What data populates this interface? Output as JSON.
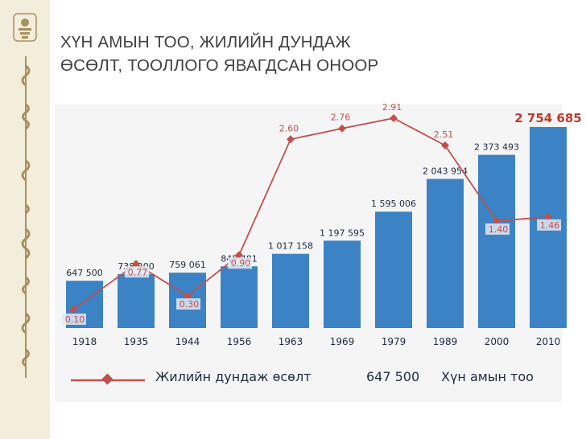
{
  "title_lines": [
    "ХҮН АМЫН ТОО, ЖИЛИЙН ДУНДАЖ",
    "ӨСӨЛТ, ТООЛЛОГО ЯВАГДСАН ОНООР"
  ],
  "colors": {
    "bar": "#3b83c4",
    "line": "#c0504d",
    "highlight_value": "#c0392b",
    "side_strip": "#f3eedb",
    "side_art": "#a89060"
  },
  "icons": [
    "state-emblem-icon",
    "vertical-mongolian-script"
  ],
  "legend": {
    "line_label": "Жилийн дундаж өсөлт",
    "bar_sample_value": "647 500",
    "bar_label": "Хүн амын тоо"
  },
  "chart_data": {
    "type": "bar",
    "categories": [
      "1918",
      "1935",
      "1944",
      "1956",
      "1963",
      "1969",
      "1979",
      "1989",
      "2000",
      "2010"
    ],
    "series": [
      {
        "name": "Хүн амын тоо",
        "type": "bar",
        "values": [
          647500,
          738200,
          759061,
          845481,
          1017158,
          1197595,
          1595006,
          2043954,
          2373493,
          2754685
        ],
        "labels": [
          "647 500",
          "738 200",
          "759 061",
          "845 481",
          "1 017 158",
          "1 197 595",
          "1 595 006",
          "2 043 954",
          "2 373 493",
          "2 754 685"
        ]
      },
      {
        "name": "Жилийн дундаж өсөлт",
        "type": "line",
        "values": [
          0.1,
          0.77,
          0.3,
          0.9,
          2.6,
          2.76,
          2.91,
          2.51,
          1.4,
          1.46
        ],
        "labels": [
          "0.10",
          "0.77",
          "0.30",
          "0.90",
          "2.60",
          "2.76",
          "2.91",
          "2.51",
          "1.40",
          "1.46"
        ]
      }
    ],
    "highlight_last_bar_label": true,
    "grid": false,
    "legend_position": "bottom"
  }
}
